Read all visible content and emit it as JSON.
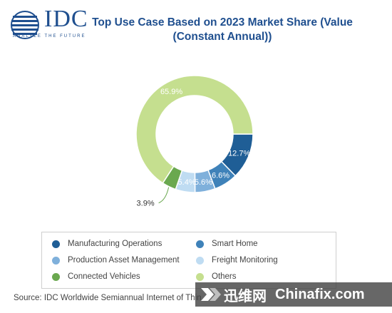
{
  "logo": {
    "name": "IDC",
    "tagline": "ANALYZE THE FUTURE",
    "color": "#1f4f8f"
  },
  "title": "Top Use Case Based on 2023 Market Share (Value (Constant Annual))",
  "chart_data": {
    "type": "pie",
    "style": "donut",
    "title": "Top Use Case Based on 2023 Market Share (Value (Constant Annual))",
    "legend_position": "bottom",
    "slices": [
      {
        "label": "Manufacturing Operations",
        "value": 12.7,
        "label_text": "12.7%",
        "color": "#1f5e96"
      },
      {
        "label": "Smart Home",
        "value": 6.6,
        "label_text": "6.6%",
        "color": "#3f82b9"
      },
      {
        "label": "Production Asset Management",
        "value": 5.6,
        "label_text": "5.6%",
        "color": "#7fb0db"
      },
      {
        "label": "Freight Monitoring",
        "value": 5.4,
        "label_text": "5.4%",
        "color": "#bfdcf2"
      },
      {
        "label": "Connected Vehicles",
        "value": 3.9,
        "label_text": "3.9%",
        "color": "#6aa84f"
      },
      {
        "label": "Others",
        "value": 65.9,
        "label_text": "65.9%",
        "color": "#c5df8f"
      }
    ]
  },
  "source": "Source: IDC Worldwide Semiannual Internet of Thin",
  "watermark": {
    "cn": "迅维网",
    "en": "Chinafix.com"
  }
}
